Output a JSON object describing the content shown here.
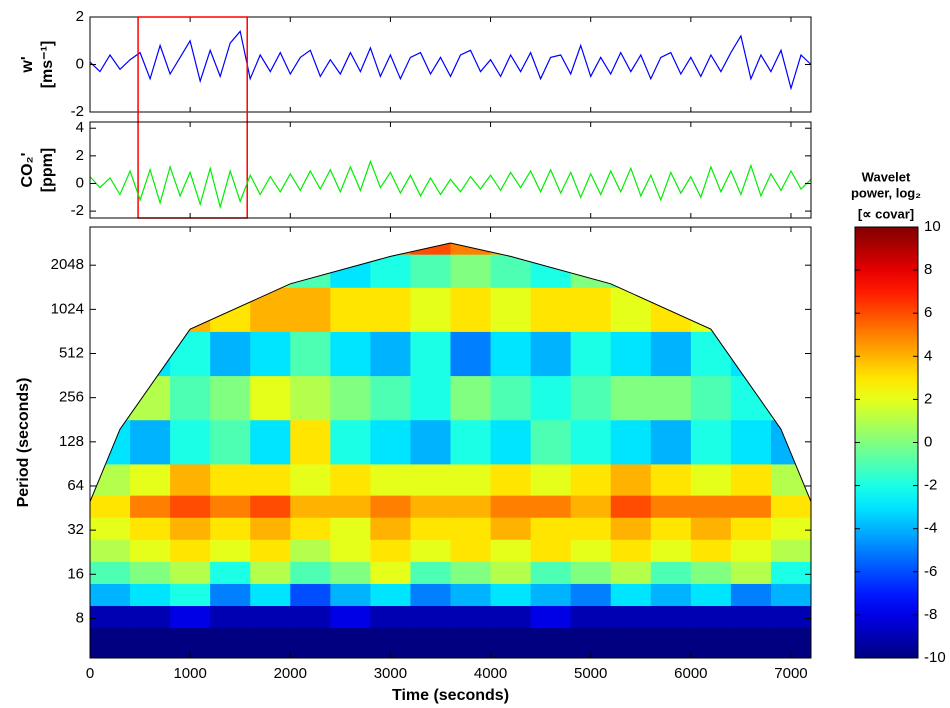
{
  "chart_data": [
    {
      "type": "line",
      "ylabel": [
        "w'",
        "[ms⁻¹]"
      ],
      "color": "#0000ff",
      "xlim": [
        0,
        7200
      ],
      "xticks": [
        0,
        1000,
        2000,
        3000,
        4000,
        5000,
        6000,
        7000
      ],
      "ylim": [
        -2,
        2
      ],
      "yticks": [
        -2,
        0,
        2
      ],
      "highlight_x": [
        480,
        1570
      ],
      "highlight_color": "#ff0000",
      "x": [
        0,
        100,
        200,
        300,
        400,
        500,
        600,
        700,
        800,
        900,
        1000,
        1100,
        1200,
        1300,
        1400,
        1500,
        1600,
        1700,
        1800,
        1900,
        2000,
        2100,
        2200,
        2300,
        2400,
        2500,
        2600,
        2700,
        2800,
        2900,
        3000,
        3100,
        3200,
        3300,
        3400,
        3500,
        3600,
        3700,
        3800,
        3900,
        4000,
        4100,
        4200,
        4300,
        4400,
        4500,
        4600,
        4700,
        4800,
        4900,
        5000,
        5100,
        5200,
        5300,
        5400,
        5500,
        5600,
        5700,
        5800,
        5900,
        6000,
        6100,
        6200,
        6300,
        6400,
        6500,
        6600,
        6700,
        6800,
        6900,
        7000,
        7100,
        7200
      ],
      "values": [
        0.1,
        -0.3,
        0.4,
        -0.2,
        0.2,
        0.5,
        -0.6,
        0.8,
        -0.4,
        0.3,
        1.0,
        -0.7,
        0.6,
        -0.5,
        0.9,
        1.4,
        -0.6,
        0.4,
        -0.3,
        0.5,
        -0.4,
        0.3,
        0.6,
        -0.5,
        0.2,
        -0.4,
        0.5,
        -0.3,
        0.7,
        -0.5,
        0.4,
        -0.6,
        0.3,
        0.5,
        -0.4,
        0.3,
        -0.5,
        0.4,
        0.6,
        -0.3,
        0.2,
        -0.5,
        0.4,
        -0.3,
        0.5,
        -0.6,
        0.3,
        0.4,
        -0.4,
        0.8,
        -0.5,
        0.3,
        -0.4,
        0.5,
        -0.3,
        0.4,
        -0.6,
        0.3,
        0.5,
        -0.4,
        0.3,
        -0.5,
        0.4,
        -0.3,
        0.5,
        1.2,
        -0.6,
        0.4,
        -0.3,
        0.6,
        -1.0,
        0.4,
        0.0
      ]
    },
    {
      "type": "line",
      "ylabel": [
        "CO₂'",
        "[ppm]"
      ],
      "color": "#00ee00",
      "xlim": [
        0,
        7200
      ],
      "xticks": [
        0,
        1000,
        2000,
        3000,
        4000,
        5000,
        6000,
        7000
      ],
      "ylim": [
        -2.5,
        4.45
      ],
      "yticks": [
        -2,
        0,
        2,
        4
      ],
      "x": [
        0,
        100,
        200,
        300,
        400,
        500,
        600,
        700,
        800,
        900,
        1000,
        1100,
        1200,
        1300,
        1400,
        1500,
        1600,
        1700,
        1800,
        1900,
        2000,
        2100,
        2200,
        2300,
        2400,
        2500,
        2600,
        2700,
        2800,
        2900,
        3000,
        3100,
        3200,
        3300,
        3400,
        3500,
        3600,
        3700,
        3800,
        3900,
        4000,
        4100,
        4200,
        4300,
        4400,
        4500,
        4600,
        4700,
        4800,
        4900,
        5000,
        5100,
        5200,
        5300,
        5400,
        5500,
        5600,
        5700,
        5800,
        5900,
        6000,
        6100,
        6200,
        6300,
        6400,
        6500,
        6600,
        6700,
        6800,
        6900,
        7000,
        7100,
        7200
      ],
      "values": [
        0.5,
        -0.3,
        0.4,
        -0.8,
        0.9,
        -1.2,
        1.0,
        -1.4,
        1.2,
        -0.9,
        0.8,
        -1.5,
        1.1,
        -1.7,
        0.9,
        -1.3,
        0.6,
        -0.8,
        0.5,
        -0.6,
        0.7,
        -0.5,
        0.9,
        -0.4,
        1.0,
        -0.6,
        1.2,
        -0.5,
        1.6,
        -0.3,
        0.8,
        -0.7,
        0.6,
        -0.9,
        0.4,
        -0.8,
        0.3,
        -0.6,
        0.5,
        -0.4,
        0.6,
        -0.5,
        0.8,
        -0.3,
        0.9,
        -0.6,
        1.0,
        -0.7,
        0.8,
        -1.0,
        0.7,
        -0.8,
        0.9,
        -0.6,
        1.1,
        -0.9,
        0.6,
        -1.2,
        0.8,
        -0.7,
        0.5,
        -1.0,
        1.2,
        -0.6,
        0.9,
        -0.8,
        1.3,
        -0.9,
        0.7,
        -0.5,
        0.9,
        -0.4,
        0.3
      ]
    },
    {
      "type": "heatmap",
      "xlabel": "Time (seconds)",
      "ylabel": "Period (seconds)",
      "xlim": [
        0,
        7200
      ],
      "xticks": [
        0,
        1000,
        2000,
        3000,
        4000,
        5000,
        6000,
        7000
      ],
      "log_y": true,
      "ylim": [
        4.3,
        3730
      ],
      "yticks": [
        8,
        16,
        32,
        64,
        128,
        256,
        512,
        1024,
        2048
      ],
      "x": [
        200,
        600,
        1000,
        1400,
        1800,
        2200,
        2600,
        3000,
        3400,
        3800,
        4200,
        4600,
        5000,
        5400,
        5800,
        6200,
        6600,
        7000
      ],
      "y": [
        6,
        8,
        12,
        16,
        24,
        32,
        48,
        64,
        128,
        256,
        512,
        1024,
        2048,
        2896
      ],
      "values": [
        [
          -10,
          -10,
          -10,
          -10,
          -10,
          -10,
          -10,
          -10,
          -10,
          -10,
          -10,
          -10,
          -10,
          -10,
          -10,
          -10,
          -10,
          -10
        ],
        [
          -9,
          -9,
          -8,
          -9,
          -9,
          -9,
          -8,
          -9,
          -9,
          -9,
          -9,
          -8,
          -9,
          -9,
          -9,
          -9,
          -9,
          -9
        ],
        [
          -4,
          -3,
          -2,
          -5,
          -3,
          -6,
          -4,
          -3,
          -5,
          -4,
          -3,
          -4,
          -5,
          -3,
          -4,
          -3,
          -5,
          -4
        ],
        [
          -1,
          0,
          1,
          -2,
          1,
          -1,
          0,
          2,
          -1,
          0,
          1,
          -1,
          0,
          1,
          -1,
          0,
          1,
          -2
        ],
        [
          1,
          2,
          3,
          2,
          3,
          1,
          2,
          3,
          2,
          3,
          2,
          3,
          2,
          3,
          2,
          3,
          2,
          1
        ],
        [
          2,
          3,
          4,
          3,
          4,
          3,
          2,
          4,
          3,
          3,
          4,
          3,
          3,
          4,
          3,
          4,
          3,
          2
        ],
        [
          3,
          5,
          6,
          5,
          6,
          4,
          4,
          5,
          4,
          4,
          5,
          5,
          4,
          6,
          5,
          5,
          5,
          3
        ],
        [
          1,
          2,
          4,
          3,
          3,
          2,
          3,
          2,
          2,
          2,
          3,
          2,
          3,
          4,
          3,
          2,
          3,
          1
        ],
        [
          -3,
          -4,
          -2,
          -1,
          -3,
          3,
          -2,
          -3,
          -4,
          -2,
          -3,
          -1,
          -2,
          -3,
          -4,
          -2,
          -3,
          -4
        ],
        [
          0,
          1,
          -1,
          0,
          2,
          1,
          0,
          -1,
          -2,
          0,
          -1,
          -2,
          -1,
          0,
          0,
          -1,
          -2,
          0
        ],
        [
          -2,
          -3,
          -2,
          -4,
          -3,
          -1,
          -3,
          -4,
          -2,
          -5,
          -3,
          -4,
          -2,
          -3,
          -4,
          -2,
          -3,
          -2
        ],
        [
          3,
          3,
          4,
          3,
          4,
          4,
          3,
          3,
          2,
          3,
          2,
          3,
          3,
          2,
          3,
          2,
          3,
          3
        ],
        [
          0,
          -1,
          -2,
          -1,
          0,
          -1,
          -3,
          -2,
          -1,
          0,
          -1,
          -2,
          0,
          -1,
          -1,
          0,
          1,
          0
        ],
        [
          2,
          2,
          2,
          2,
          3,
          3,
          4,
          5,
          6,
          5,
          4,
          3,
          3,
          2,
          2,
          2,
          2,
          2
        ]
      ],
      "coi_x": [
        0,
        300,
        1000,
        2000,
        3000,
        3600,
        4200,
        5200,
        6200,
        6900,
        7200
      ],
      "coi_period": [
        50,
        156,
        750,
        1530,
        2350,
        2900,
        2350,
        1530,
        750,
        156,
        50
      ],
      "colorbar": {
        "title": [
          "Wavelet",
          "power, log₂",
          "[∝ covar]"
        ],
        "colormap": "jet",
        "clim": [
          -10,
          10
        ],
        "ticks": [
          -10,
          -8,
          -6,
          -4,
          -2,
          0,
          2,
          4,
          6,
          8,
          10
        ]
      }
    }
  ]
}
